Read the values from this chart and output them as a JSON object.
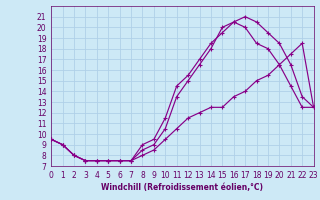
{
  "title": "",
  "xlabel": "Windchill (Refroidissement éolien,°C)",
  "bg_color": "#cde9f6",
  "grid_color": "#b0d0e8",
  "line_color": "#880088",
  "xmin": 0,
  "xmax": 23,
  "ymin": 7,
  "ymax": 22,
  "line1_x": [
    0,
    1,
    2,
    3,
    4,
    5,
    6,
    7,
    8,
    9,
    10,
    11,
    12,
    13,
    14,
    15,
    16,
    17,
    18,
    19,
    20,
    21,
    22,
    23
  ],
  "line1_y": [
    9.5,
    9.0,
    8.0,
    7.5,
    7.5,
    7.5,
    7.5,
    7.5,
    9.0,
    9.5,
    11.5,
    14.5,
    15.5,
    17.0,
    18.5,
    19.5,
    20.5,
    21.0,
    20.5,
    19.5,
    18.5,
    16.5,
    13.5,
    12.5
  ],
  "line2_x": [
    0,
    1,
    2,
    3,
    4,
    5,
    6,
    7,
    8,
    9,
    10,
    11,
    12,
    13,
    14,
    15,
    16,
    17,
    18,
    19,
    20,
    21,
    22,
    23
  ],
  "line2_y": [
    9.5,
    9.0,
    8.0,
    7.5,
    7.5,
    7.5,
    7.5,
    7.5,
    8.5,
    9.0,
    10.5,
    13.5,
    15.0,
    16.5,
    18.0,
    20.0,
    20.5,
    20.0,
    18.5,
    18.0,
    16.5,
    14.5,
    12.5,
    12.5
  ],
  "line3_x": [
    0,
    1,
    2,
    3,
    4,
    5,
    6,
    7,
    8,
    9,
    10,
    11,
    12,
    13,
    14,
    15,
    16,
    17,
    18,
    19,
    20,
    21,
    22,
    23
  ],
  "line3_y": [
    9.5,
    9.0,
    8.0,
    7.5,
    7.5,
    7.5,
    7.5,
    7.5,
    8.0,
    8.5,
    9.5,
    10.5,
    11.5,
    12.0,
    12.5,
    12.5,
    13.5,
    14.0,
    15.0,
    15.5,
    16.5,
    17.5,
    18.5,
    12.5
  ],
  "yticks": [
    7,
    8,
    9,
    10,
    11,
    12,
    13,
    14,
    15,
    16,
    17,
    18,
    19,
    20,
    21
  ],
  "xticks": [
    0,
    1,
    2,
    3,
    4,
    5,
    6,
    7,
    8,
    9,
    10,
    11,
    12,
    13,
    14,
    15,
    16,
    17,
    18,
    19,
    20,
    21,
    22,
    23
  ],
  "font_color": "#660066",
  "tick_fontsize": 5.5,
  "label_fontsize": 5.5
}
